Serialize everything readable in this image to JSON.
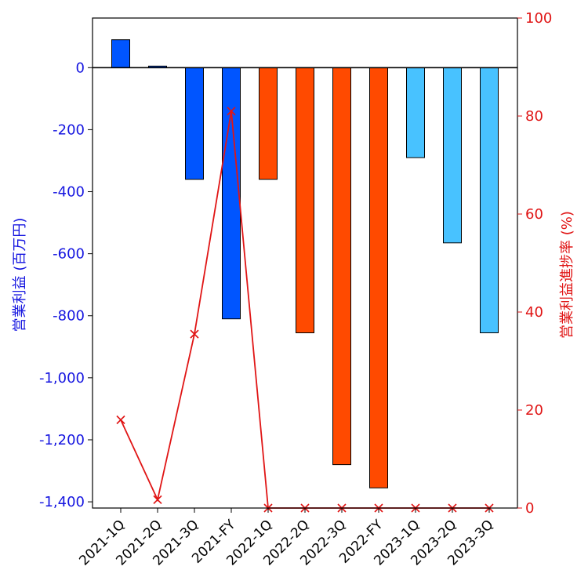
{
  "colors": {
    "left_axis": "#1515e0",
    "right_axis": "#e01515",
    "fy2021": "#0055ff",
    "fy2022": "#ff4a00",
    "fy2023": "#48c2ff",
    "line": "#e01515"
  },
  "chart_data": {
    "type": "bar",
    "categories": [
      "2021-1Q",
      "2021-2Q",
      "2021-3Q",
      "2021-FY",
      "2022-1Q",
      "2022-2Q",
      "2022-3Q",
      "2022-FY",
      "2023-1Q",
      "2023-2Q",
      "2023-3Q"
    ],
    "series": [
      {
        "type": "bar",
        "axis": "left",
        "values": [
          90,
          5,
          -360,
          -810,
          -360,
          -855,
          -1280,
          -1355,
          -290,
          -565,
          -855
        ],
        "color_groups": [
          "fy2021",
          "fy2021",
          "fy2021",
          "fy2021",
          "fy2022",
          "fy2022",
          "fy2022",
          "fy2022",
          "fy2023",
          "fy2023",
          "fy2023"
        ]
      },
      {
        "type": "line",
        "axis": "right",
        "marker": "x",
        "values": [
          18,
          1.7,
          35.5,
          81,
          0,
          0,
          0,
          0,
          0,
          0,
          0
        ]
      }
    ],
    "ylabel_left": "営業利益 (百万円)",
    "ylabel_right": "営業利益進捗率 (%)",
    "ylim_left": [
      -1420,
      160
    ],
    "yticks_left": [
      0,
      -200,
      -400,
      -600,
      -800,
      -1000,
      -1200,
      -1400
    ],
    "ytick_labels_left": [
      "0",
      "-200",
      "-400",
      "-600",
      "-800",
      "-1,000",
      "-1,200",
      "-1,400"
    ],
    "ylim_right": [
      0,
      100
    ],
    "yticks_right": [
      0,
      20,
      40,
      60,
      80,
      100
    ],
    "ytick_labels_right": [
      "0",
      "20",
      "40",
      "60",
      "80",
      "100"
    ],
    "zero_line": true,
    "grid": false
  }
}
